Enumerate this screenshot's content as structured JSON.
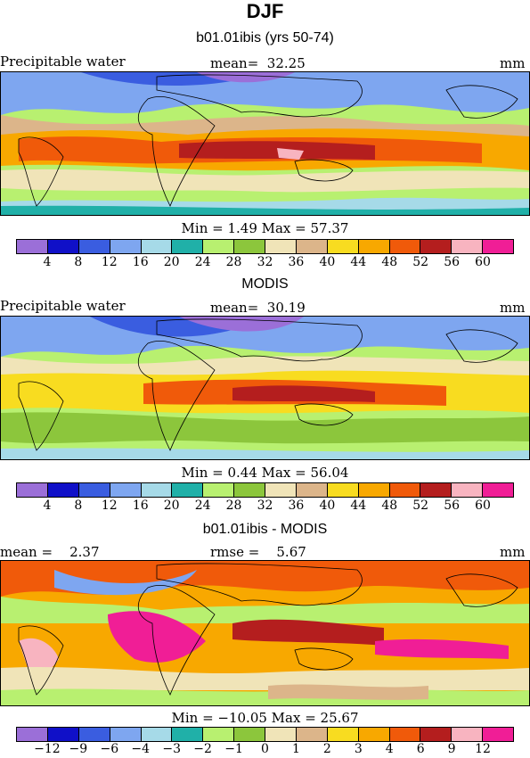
{
  "season": "DJF",
  "colorbar_colors": [
    "#9b6fd8",
    "#1010c8",
    "#3a5de0",
    "#7ea6f0",
    "#a6dae8",
    "#20b0a8",
    "#b8f070",
    "#8cc63c",
    "#f0e4b8",
    "#dcb58a",
    "#f8dc20",
    "#f8a800",
    "#f05a0a",
    "#b41e1e",
    "#f8b4c0",
    "#f01e96"
  ],
  "panels": [
    {
      "title": "b01.01ibis (yrs 50-74)",
      "left_label": "Precipitable water",
      "center_label": "mean=  32.25",
      "right_label": "mm",
      "minmax": "Min =    1.49 Max =  57.37",
      "ticks": [
        "4",
        "8",
        "12",
        "16",
        "20",
        "24",
        "28",
        "32",
        "36",
        "40",
        "44",
        "48",
        "52",
        "56",
        "60"
      ]
    },
    {
      "title": "MODIS",
      "left_label": "Precipitable water",
      "center_label": "mean=  30.19",
      "right_label": "mm",
      "minmax": "Min =   0.44 Max =  56.04",
      "ticks": [
        "4",
        "8",
        "12",
        "16",
        "20",
        "24",
        "28",
        "32",
        "36",
        "40",
        "44",
        "48",
        "52",
        "56",
        "60"
      ]
    },
    {
      "title": "b01.01ibis - MODIS",
      "left_label": "mean =    2.37",
      "center_label": "rmse =    5.67",
      "right_label": "mm",
      "minmax": "Min = −10.05 Max =  25.67",
      "ticks": [
        "−12",
        "−9",
        "−6",
        "−4",
        "−3",
        "−2",
        "−1",
        "0",
        "1",
        "2",
        "3",
        "4",
        "6",
        "9",
        "12"
      ]
    }
  ]
}
